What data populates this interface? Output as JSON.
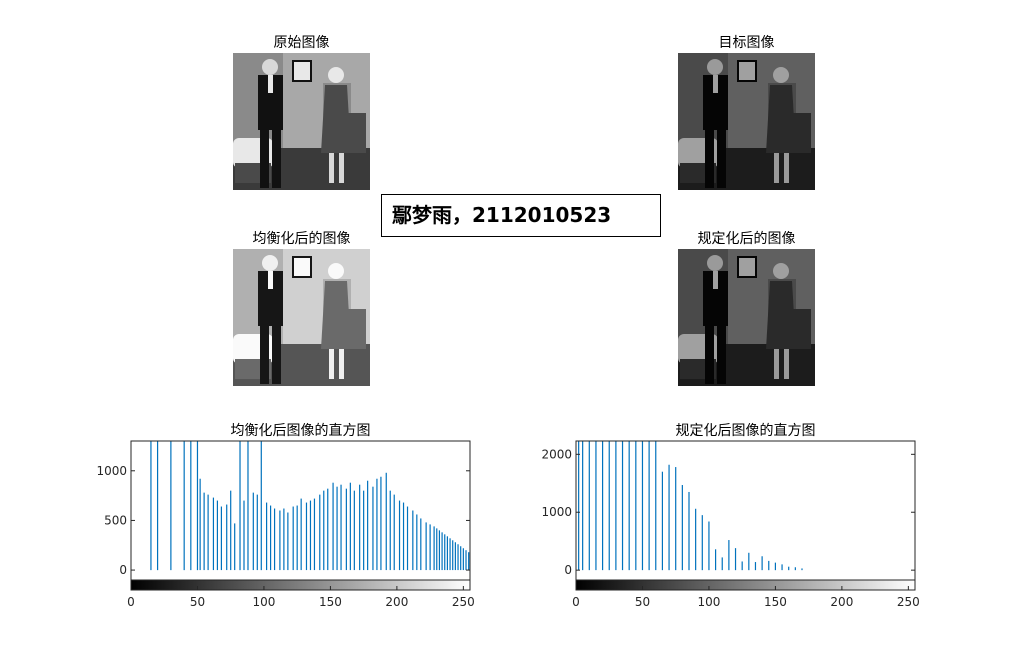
{
  "images": [
    {
      "title": "原始图像",
      "tone": "normal"
    },
    {
      "title": "目标图像",
      "tone": "dark"
    },
    {
      "title": "均衡化后的图像",
      "tone": "bright"
    },
    {
      "title": "规定化后的图像",
      "tone": "dark"
    }
  ],
  "textbox": {
    "text": "鄢梦雨，2112010523"
  },
  "chart_data": [
    {
      "type": "bar",
      "title": "均衡化后图像的直方图",
      "xlabel": "",
      "ylabel": "",
      "xlim": [
        0,
        255
      ],
      "ylim": [
        -100,
        1300
      ],
      "xticks": [
        0,
        50,
        100,
        150,
        200,
        250
      ],
      "yticks": [
        0,
        500,
        1000
      ],
      "color": "#0072BD",
      "colorbar": "grayscale 0-255",
      "x": [
        15,
        20,
        30,
        40,
        45,
        50,
        52,
        55,
        58,
        62,
        65,
        68,
        72,
        75,
        78,
        82,
        85,
        88,
        92,
        95,
        98,
        102,
        105,
        108,
        112,
        115,
        118,
        122,
        125,
        128,
        132,
        135,
        138,
        142,
        145,
        148,
        152,
        155,
        158,
        162,
        165,
        168,
        172,
        175,
        178,
        182,
        185,
        188,
        192,
        195,
        198,
        202,
        205,
        208,
        212,
        215,
        218,
        222,
        225,
        228,
        230,
        232,
        234,
        236,
        238,
        240,
        242,
        244,
        246,
        248,
        250,
        252,
        254
      ],
      "y": [
        1300,
        1300,
        1300,
        1300,
        1300,
        1300,
        920,
        780,
        760,
        730,
        700,
        640,
        660,
        800,
        470,
        1300,
        700,
        1300,
        780,
        760,
        1300,
        680,
        650,
        620,
        600,
        620,
        580,
        640,
        650,
        720,
        680,
        700,
        720,
        760,
        800,
        820,
        880,
        840,
        860,
        820,
        880,
        800,
        860,
        800,
        900,
        840,
        920,
        940,
        980,
        800,
        760,
        700,
        680,
        640,
        600,
        560,
        520,
        480,
        460,
        440,
        420,
        400,
        380,
        360,
        340,
        320,
        300,
        280,
        260,
        240,
        220,
        200,
        180
      ]
    },
    {
      "type": "bar",
      "title": "规定化后图像的直方图",
      "xlabel": "",
      "ylabel": "",
      "xlim": [
        0,
        255
      ],
      "ylim": [
        -170,
        2230
      ],
      "xticks": [
        0,
        50,
        100,
        150,
        200,
        250
      ],
      "yticks": [
        0,
        1000,
        2000
      ],
      "color": "#0072BD",
      "colorbar": "grayscale 0-255",
      "x": [
        2,
        5,
        10,
        15,
        20,
        25,
        30,
        35,
        40,
        45,
        50,
        55,
        60,
        65,
        70,
        75,
        80,
        85,
        90,
        95,
        100,
        105,
        110,
        115,
        120,
        125,
        130,
        135,
        140,
        145,
        150,
        155,
        160,
        165,
        170
      ],
      "y": [
        2230,
        2230,
        2230,
        2230,
        2230,
        2230,
        2230,
        2230,
        2230,
        2230,
        2230,
        2230,
        2230,
        1700,
        1820,
        1780,
        1470,
        1350,
        1060,
        950,
        840,
        360,
        220,
        520,
        380,
        150,
        300,
        140,
        240,
        160,
        130,
        100,
        60,
        50,
        30
      ]
    }
  ]
}
